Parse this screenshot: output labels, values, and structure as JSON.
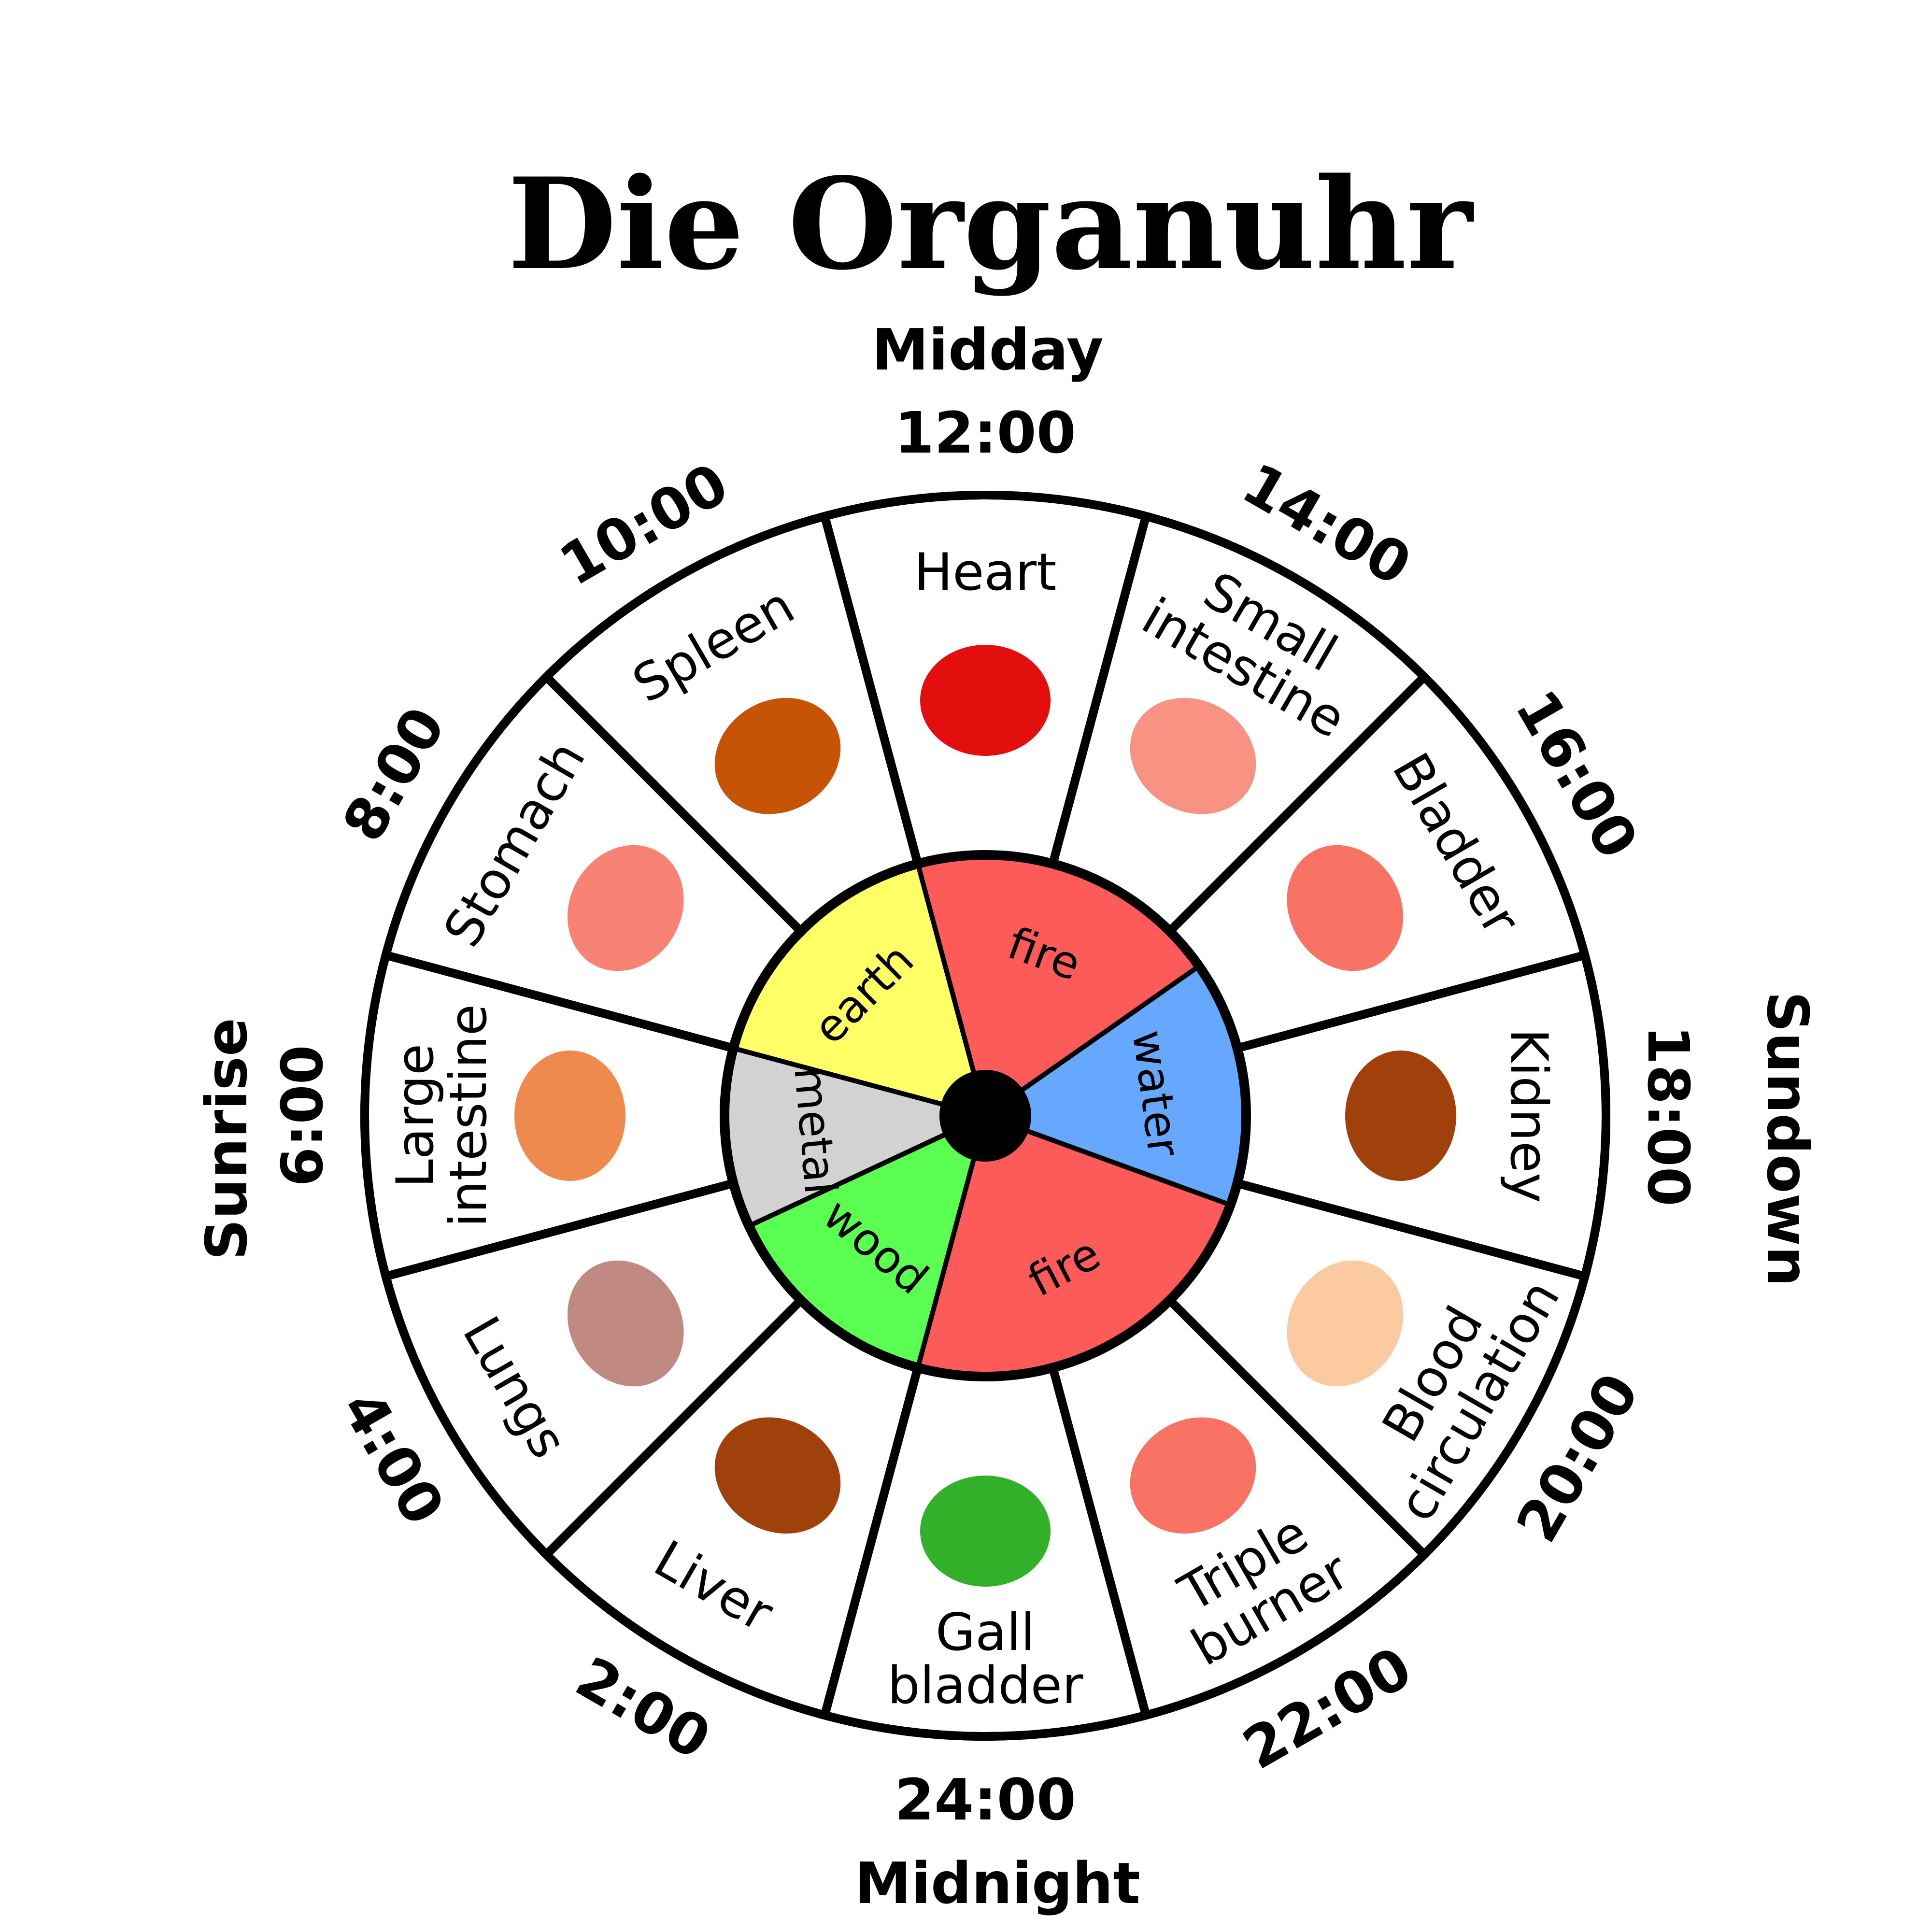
{
  "title": "Die Organuhr",
  "cardinal": {
    "top": "Midday",
    "right": "Sundown",
    "bottom": "Midnight",
    "left": "Sunrise"
  },
  "colors": {
    "fire": "#fd5a5a",
    "earth": "#ffff66",
    "water": "#66a8ff",
    "metal": "#d2d2d2",
    "wood": "#5bff52"
  },
  "times": [
    "12:00",
    "14:00",
    "16:00",
    "18:00",
    "20:00",
    "22:00",
    "24:00",
    "2:00",
    "4:00",
    "6:00",
    "8:00",
    "10:00"
  ],
  "organs": [
    {
      "lines": [
        "Heart"
      ],
      "icon": "heart-icon",
      "color": "#e30f0f"
    },
    {
      "lines": [
        "Small",
        "intestine"
      ],
      "icon": "small-intestine-icon",
      "color": "#f89383"
    },
    {
      "lines": [
        "Bladder"
      ],
      "icon": "bladder-icon",
      "color": "#f87363"
    },
    {
      "lines": [
        "Kidney"
      ],
      "icon": "kidney-icon",
      "color": "#a0410c"
    },
    {
      "lines": [
        "Blood",
        "circulation"
      ],
      "icon": "blood-circulation-icon",
      "color": "#fbcaa0"
    },
    {
      "lines": [
        "Triple",
        "burner"
      ],
      "icon": "triple-burner-icon",
      "color": "#f87363"
    },
    {
      "lines": [
        "Gall",
        "bladder"
      ],
      "icon": "gall-bladder-icon",
      "color": "#33b02a"
    },
    {
      "lines": [
        "Liver"
      ],
      "icon": "liver-icon",
      "color": "#a0410c"
    },
    {
      "lines": [
        "Lungs"
      ],
      "icon": "lungs-icon",
      "color": "#c08a82"
    },
    {
      "lines": [
        "Large",
        "intestine"
      ],
      "icon": "large-intestine-icon",
      "color": "#ee8a4d"
    },
    {
      "lines": [
        "Stomach"
      ],
      "icon": "stomach-icon",
      "color": "#f88374"
    },
    {
      "lines": [
        "Spleen"
      ],
      "icon": "spleen-icon",
      "color": "#c75306"
    }
  ],
  "elements": [
    {
      "label": "fire",
      "color": "#fd5a5a"
    },
    {
      "label": "water",
      "color": "#66a8ff"
    },
    {
      "label": "fire",
      "color": "#fd5a5a"
    },
    {
      "label": "wood",
      "color": "#5bff52"
    },
    {
      "label": "metal",
      "color": "#d2d2d2"
    },
    {
      "label": "earth",
      "color": "#ffff66"
    }
  ]
}
